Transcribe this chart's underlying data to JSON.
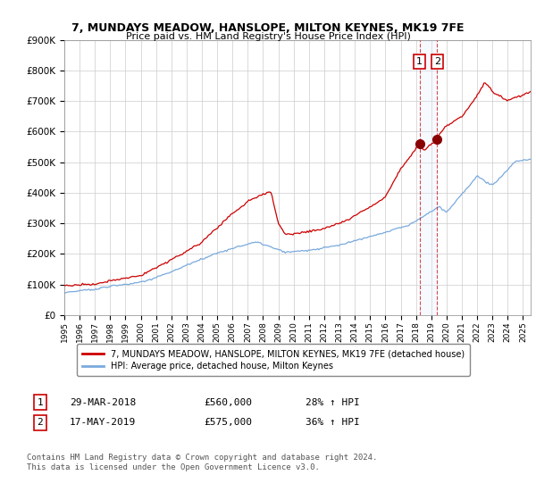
{
  "title": "7, MUNDAYS MEADOW, HANSLOPE, MILTON KEYNES, MK19 7FE",
  "subtitle": "Price paid vs. HM Land Registry's House Price Index (HPI)",
  "legend_line1": "7, MUNDAYS MEADOW, HANSLOPE, MILTON KEYNES, MK19 7FE (detached house)",
  "legend_line2": "HPI: Average price, detached house, Milton Keynes",
  "sale1_label": "1",
  "sale1_date": "29-MAR-2018",
  "sale1_price": "£560,000",
  "sale1_hpi": "28% ↑ HPI",
  "sale2_label": "2",
  "sale2_date": "17-MAY-2019",
  "sale2_price": "£575,000",
  "sale2_hpi": "36% ↑ HPI",
  "footer": "Contains HM Land Registry data © Crown copyright and database right 2024.\nThis data is licensed under the Open Government Licence v3.0.",
  "property_color": "#cc0000",
  "hpi_color": "#7aaadd",
  "shade_color": "#ddeeff",
  "sale1_x": 2018.24,
  "sale1_y": 560000,
  "sale2_x": 2019.38,
  "sale2_y": 575000,
  "vline1_x": 2018.24,
  "vline2_x": 2019.38,
  "ylim": [
    0,
    900000
  ],
  "xlim_start": 1995,
  "xlim_end": 2025.5,
  "yticks": [
    0,
    100000,
    200000,
    300000,
    400000,
    500000,
    600000,
    700000,
    800000,
    900000
  ],
  "ytick_labels": [
    "£0",
    "£100K",
    "£200K",
    "£300K",
    "£400K",
    "£500K",
    "£600K",
    "£700K",
    "£800K",
    "£900K"
  ],
  "xtick_labels": [
    "1995",
    "1996",
    "1997",
    "1998",
    "1999",
    "2000",
    "2001",
    "2002",
    "2003",
    "2004",
    "2005",
    "2006",
    "2007",
    "2008",
    "2009",
    "2010",
    "2011",
    "2012",
    "2013",
    "2014",
    "2015",
    "2016",
    "2017",
    "2018",
    "2019",
    "2020",
    "2021",
    "2022",
    "2023",
    "2024",
    "2025"
  ]
}
